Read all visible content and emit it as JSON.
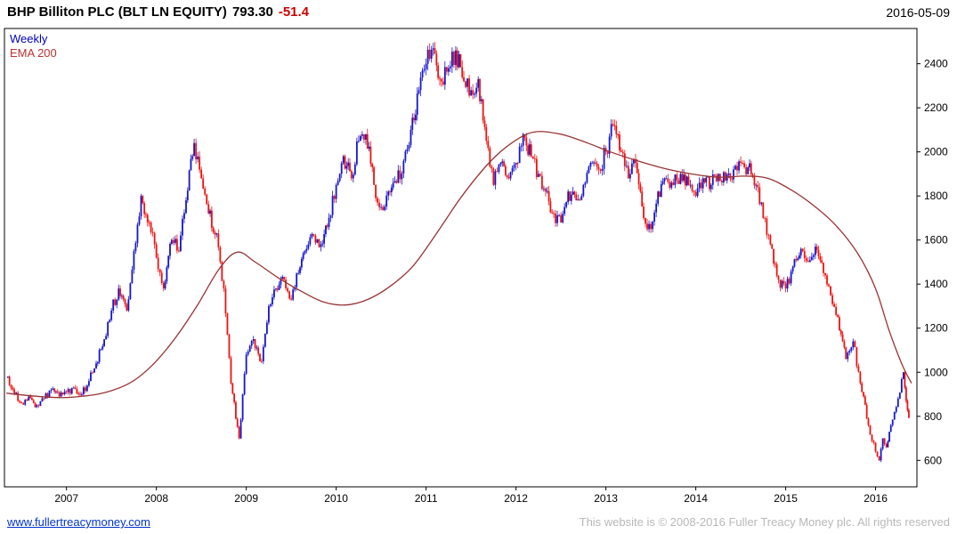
{
  "header": {
    "title": "BHP Billiton PLC (BLT LN EQUITY)",
    "price": "793.30",
    "change": "-51.4",
    "date": "2016-05-09"
  },
  "legend": {
    "series": "Weekly",
    "overlay": "EMA 200"
  },
  "footer": {
    "link": "www.fullertreacymoney.com",
    "copyright": "This website is © 2008-2016 Fuller Treacy Money plc. All rights reserved"
  },
  "colors": {
    "up": "#1414cc",
    "down": "#ee1111",
    "ema": "#993333",
    "change": "#cc0000",
    "legend_weekly": "#0000bb",
    "legend_ema": "#bb3333",
    "link": "#0033cc",
    "copyright": "#b8b8b8",
    "axis": "#000000"
  },
  "chart_data": {
    "type": "candlestick",
    "interval": "weekly",
    "title": "BHP Billiton PLC (BLT LN EQUITY)",
    "last_price": 793.3,
    "change": -51.4,
    "as_of_date": "2016-05-09",
    "overlay": {
      "name": "EMA 200"
    },
    "xlabel": "",
    "ylabel": "",
    "grid": false,
    "legend_position": "top-left-inside",
    "y_axis_side": "right",
    "y_ticks": [
      600,
      800,
      1000,
      1200,
      1400,
      1600,
      1800,
      2000,
      2200,
      2400
    ],
    "x_ticks": [
      2007,
      2008,
      2009,
      2010,
      2011,
      2012,
      2013,
      2014,
      2015,
      2016
    ],
    "y_range": [
      480,
      2560
    ],
    "x_range": [
      2006.31,
      2016.46
    ],
    "monthly_closes": [
      [
        2006.33,
        980
      ],
      [
        2006.42,
        900
      ],
      [
        2006.5,
        860
      ],
      [
        2006.58,
        890
      ],
      [
        2006.67,
        850
      ],
      [
        2006.75,
        880
      ],
      [
        2006.83,
        920
      ],
      [
        2006.92,
        890
      ],
      [
        2007.0,
        910
      ],
      [
        2007.08,
        930
      ],
      [
        2007.17,
        900
      ],
      [
        2007.25,
        960
      ],
      [
        2007.33,
        1040
      ],
      [
        2007.42,
        1150
      ],
      [
        2007.5,
        1280
      ],
      [
        2007.58,
        1380
      ],
      [
        2007.67,
        1280
      ],
      [
        2007.75,
        1550
      ],
      [
        2007.83,
        1800
      ],
      [
        2007.92,
        1680
      ],
      [
        2008.0,
        1520
      ],
      [
        2008.08,
        1380
      ],
      [
        2008.17,
        1600
      ],
      [
        2008.25,
        1550
      ],
      [
        2008.33,
        1780
      ],
      [
        2008.42,
        2040
      ],
      [
        2008.5,
        1880
      ],
      [
        2008.58,
        1720
      ],
      [
        2008.67,
        1630
      ],
      [
        2008.75,
        1380
      ],
      [
        2008.83,
        950
      ],
      [
        2008.92,
        700
      ],
      [
        2009.0,
        1080
      ],
      [
        2009.08,
        1150
      ],
      [
        2009.17,
        1050
      ],
      [
        2009.25,
        1300
      ],
      [
        2009.33,
        1380
      ],
      [
        2009.42,
        1420
      ],
      [
        2009.5,
        1330
      ],
      [
        2009.58,
        1450
      ],
      [
        2009.67,
        1560
      ],
      [
        2009.75,
        1620
      ],
      [
        2009.83,
        1580
      ],
      [
        2009.92,
        1700
      ],
      [
        2010.0,
        1850
      ],
      [
        2010.08,
        1980
      ],
      [
        2010.17,
        1880
      ],
      [
        2010.25,
        2050
      ],
      [
        2010.33,
        2080
      ],
      [
        2010.42,
        1850
      ],
      [
        2010.5,
        1750
      ],
      [
        2010.58,
        1820
      ],
      [
        2010.67,
        1860
      ],
      [
        2010.75,
        1960
      ],
      [
        2010.83,
        2100
      ],
      [
        2010.92,
        2280
      ],
      [
        2011.0,
        2400
      ],
      [
        2011.08,
        2470
      ],
      [
        2011.17,
        2320
      ],
      [
        2011.25,
        2380
      ],
      [
        2011.33,
        2460
      ],
      [
        2011.42,
        2320
      ],
      [
        2011.5,
        2280
      ],
      [
        2011.58,
        2330
      ],
      [
        2011.67,
        2050
      ],
      [
        2011.75,
        1850
      ],
      [
        2011.83,
        1950
      ],
      [
        2011.92,
        1880
      ],
      [
        2012.0,
        1950
      ],
      [
        2012.08,
        2080
      ],
      [
        2012.17,
        1980
      ],
      [
        2012.25,
        1900
      ],
      [
        2012.33,
        1820
      ],
      [
        2012.42,
        1720
      ],
      [
        2012.5,
        1680
      ],
      [
        2012.58,
        1820
      ],
      [
        2012.67,
        1780
      ],
      [
        2012.75,
        1850
      ],
      [
        2012.83,
        1950
      ],
      [
        2012.92,
        1920
      ],
      [
        2013.0,
        2000
      ],
      [
        2013.08,
        2120
      ],
      [
        2013.17,
        2000
      ],
      [
        2013.25,
        1880
      ],
      [
        2013.33,
        1950
      ],
      [
        2013.42,
        1700
      ],
      [
        2013.5,
        1650
      ],
      [
        2013.58,
        1820
      ],
      [
        2013.67,
        1880
      ],
      [
        2013.75,
        1850
      ],
      [
        2013.83,
        1900
      ],
      [
        2013.92,
        1850
      ],
      [
        2014.0,
        1800
      ],
      [
        2014.08,
        1880
      ],
      [
        2014.17,
        1850
      ],
      [
        2014.25,
        1900
      ],
      [
        2014.33,
        1870
      ],
      [
        2014.42,
        1920
      ],
      [
        2014.5,
        1950
      ],
      [
        2014.58,
        1930
      ],
      [
        2014.67,
        1850
      ],
      [
        2014.75,
        1700
      ],
      [
        2014.83,
        1580
      ],
      [
        2014.92,
        1420
      ],
      [
        2015.0,
        1380
      ],
      [
        2015.08,
        1480
      ],
      [
        2015.17,
        1560
      ],
      [
        2015.25,
        1500
      ],
      [
        2015.33,
        1570
      ],
      [
        2015.42,
        1450
      ],
      [
        2015.5,
        1350
      ],
      [
        2015.58,
        1250
      ],
      [
        2015.67,
        1060
      ],
      [
        2015.75,
        1140
      ],
      [
        2015.83,
        950
      ],
      [
        2015.92,
        760
      ],
      [
        2016.0,
        640
      ],
      [
        2016.04,
        600
      ],
      [
        2016.08,
        700
      ],
      [
        2016.12,
        660
      ],
      [
        2016.17,
        760
      ],
      [
        2016.21,
        820
      ],
      [
        2016.25,
        880
      ],
      [
        2016.31,
        1000
      ],
      [
        2016.34,
        870
      ],
      [
        2016.37,
        793.3
      ]
    ],
    "ema200": [
      [
        2006.33,
        905
      ],
      [
        2006.6,
        893
      ],
      [
        2006.9,
        885
      ],
      [
        2007.1,
        888
      ],
      [
        2007.4,
        905
      ],
      [
        2007.7,
        950
      ],
      [
        2007.95,
        1030
      ],
      [
        2008.2,
        1150
      ],
      [
        2008.45,
        1300
      ],
      [
        2008.7,
        1470
      ],
      [
        2008.9,
        1545
      ],
      [
        2009.1,
        1500
      ],
      [
        2009.35,
        1430
      ],
      [
        2009.6,
        1370
      ],
      [
        2009.85,
        1320
      ],
      [
        2010.1,
        1305
      ],
      [
        2010.35,
        1330
      ],
      [
        2010.6,
        1390
      ],
      [
        2010.85,
        1480
      ],
      [
        2011.1,
        1620
      ],
      [
        2011.4,
        1800
      ],
      [
        2011.7,
        1950
      ],
      [
        2011.95,
        2040
      ],
      [
        2012.2,
        2090
      ],
      [
        2012.5,
        2080
      ],
      [
        2012.8,
        2040
      ],
      [
        2013.05,
        2000
      ],
      [
        2013.35,
        1960
      ],
      [
        2013.65,
        1925
      ],
      [
        2013.95,
        1900
      ],
      [
        2014.25,
        1885
      ],
      [
        2014.55,
        1890
      ],
      [
        2014.8,
        1880
      ],
      [
        2015.05,
        1830
      ],
      [
        2015.3,
        1760
      ],
      [
        2015.55,
        1670
      ],
      [
        2015.8,
        1540
      ],
      [
        2016.0,
        1380
      ],
      [
        2016.15,
        1190
      ],
      [
        2016.3,
        1030
      ],
      [
        2016.4,
        950
      ]
    ]
  }
}
